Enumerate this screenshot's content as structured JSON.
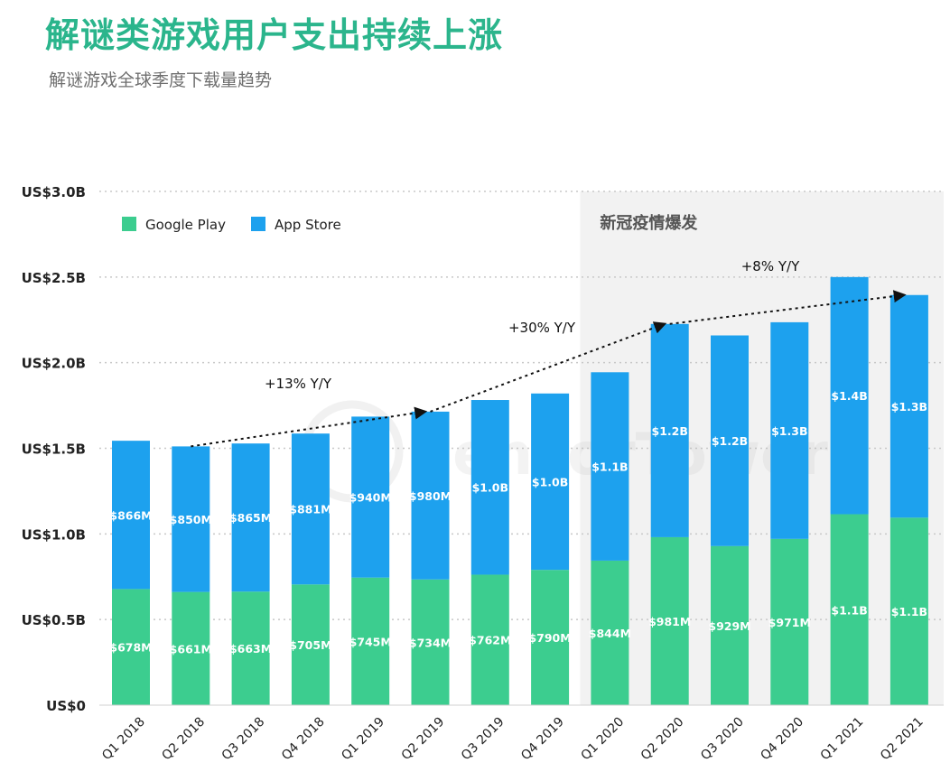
{
  "title": "解谜类游戏用户支出持续上涨",
  "subtitle": "解谜游戏全球季度下载量趋势",
  "watermark": "SensorTower",
  "highlight_label": "新冠疫情爆发",
  "colors": {
    "google_play": "#3ccd8f",
    "app_store": "#1da1ee",
    "title": "#2bb58c",
    "highlight": "#f2f2f2"
  },
  "chart_data": {
    "type": "bar",
    "stacked": true,
    "categories": [
      "Q1 2018",
      "Q2 2018",
      "Q3 2018",
      "Q4 2018",
      "Q1 2019",
      "Q2 2019",
      "Q3 2019",
      "Q4 2019",
      "Q1 2020",
      "Q2 2020",
      "Q3 2020",
      "Q4 2020",
      "Q1 2021",
      "Q2 2021"
    ],
    "series": [
      {
        "name": "Google Play",
        "color": "#3ccd8f",
        "values": [
          0.678,
          0.661,
          0.663,
          0.705,
          0.745,
          0.734,
          0.762,
          0.79,
          0.844,
          0.981,
          0.929,
          0.971,
          1.115,
          1.095
        ],
        "labels": [
          "$678M",
          "$661M",
          "$663M",
          "$705M",
          "$745M",
          "$734M",
          "$762M",
          "$790M",
          "$844M",
          "$981M",
          "$929M",
          "$971M",
          "$1.1B",
          "$1.1B"
        ]
      },
      {
        "name": "App Store",
        "color": "#1da1ee",
        "values": [
          0.866,
          0.85,
          0.865,
          0.881,
          0.94,
          0.98,
          1.02,
          1.03,
          1.1,
          1.245,
          1.23,
          1.265,
          1.385,
          1.3
        ],
        "labels": [
          "$866M",
          "$850M",
          "$865M",
          "$881M",
          "$940M",
          "$980M",
          "$1.0B",
          "$1.0B",
          "$1.1B",
          "$1.2B",
          "$1.2B",
          "$1.3B",
          "$1.4B",
          "$1.3B"
        ]
      }
    ],
    "ylim": [
      0,
      3.0
    ],
    "yticks": [
      0,
      0.5,
      1.0,
      1.5,
      2.0,
      2.5,
      3.0
    ],
    "ytick_labels": [
      "US$0",
      "US$0.5B",
      "US$1.0B",
      "US$1.5B",
      "US$2.0B",
      "US$2.5B",
      "US$3.0B"
    ],
    "grid": true,
    "legend": "top-left",
    "highlight_from_category": "Q1 2020",
    "trend": {
      "points": [
        {
          "category": "Q2 2018",
          "value": 1.511
        },
        {
          "category": "Q2 2019",
          "value": 1.714
        },
        {
          "category": "Q2 2020",
          "value": 2.226
        },
        {
          "category": "Q2 2021",
          "value": 2.395
        }
      ],
      "annotations": [
        "+13% Y/Y",
        "+30% Y/Y",
        "+8% Y/Y"
      ]
    }
  }
}
